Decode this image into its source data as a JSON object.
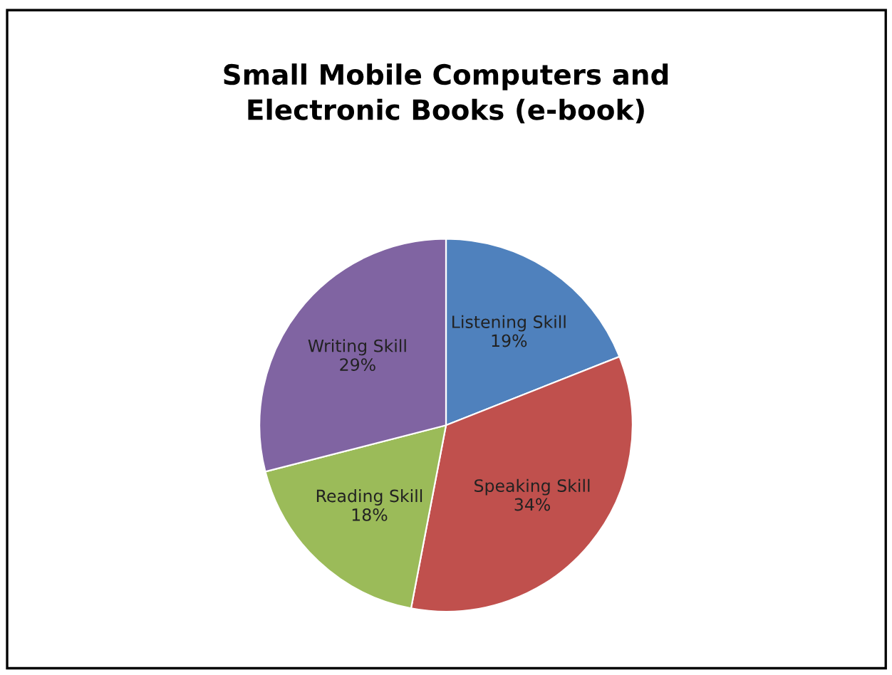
{
  "chart_data": {
    "type": "pie",
    "title": "Small Mobile Computers and\nElectronic Books (e-book)",
    "categories": [
      "Listening Skill",
      "Speaking Skill",
      "Reading Skill",
      "Writing Skill"
    ],
    "values": [
      19,
      34,
      18,
      29
    ],
    "colors": [
      "#4f81bd",
      "#c0504d",
      "#9bbb59",
      "#8064a2"
    ],
    "value_labels": [
      "19%",
      "34%",
      "18%",
      "29%"
    ],
    "legend": false
  }
}
